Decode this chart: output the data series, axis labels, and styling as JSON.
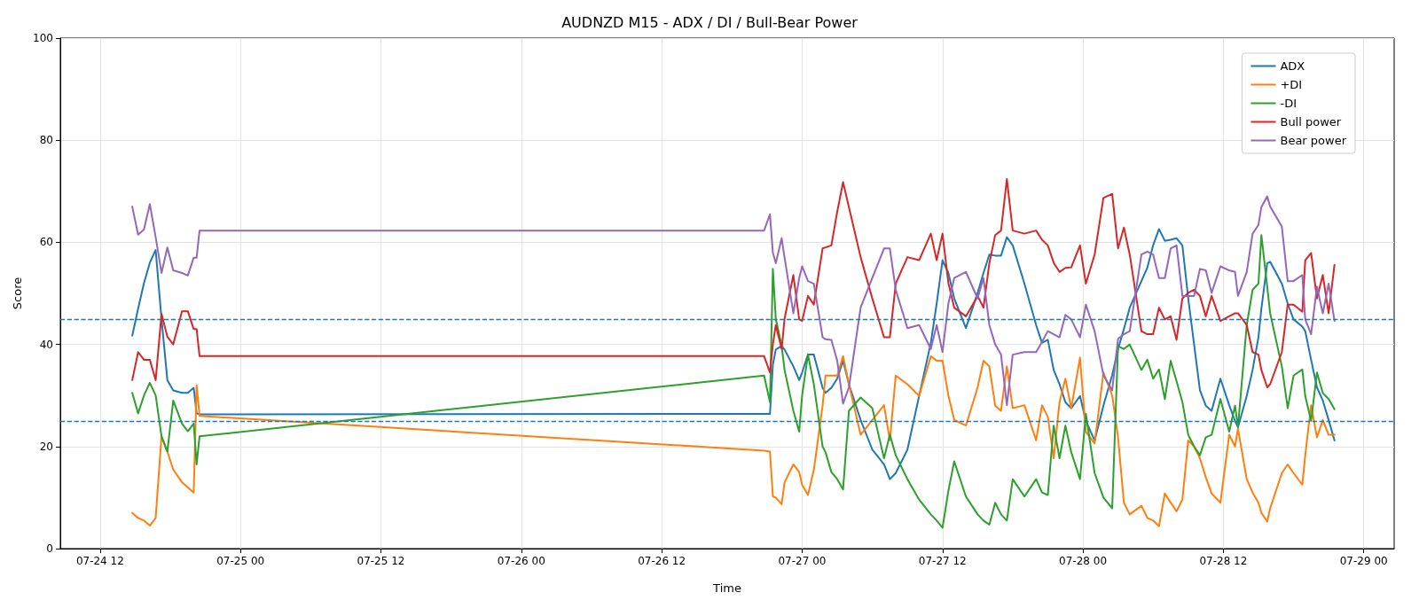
{
  "chart_data": {
    "type": "line",
    "title": "AUDNZD M15 - ADX / DI / Bull-Bear Power",
    "xlabel": "Time",
    "ylabel": "Score",
    "x": [
      "--07-24T14:45",
      "--07-24T15:15",
      "--07-24T15:45",
      "--07-24T16:15",
      "--07-24T16:45",
      "--07-24T17:15",
      "--07-24T17:45",
      "--07-24T18:15",
      "--07-24T19:00",
      "--07-24T19:30",
      "--07-24T20:00",
      "--07-24T20:15",
      "--07-24T20:30",
      "--07-26T20:45",
      "--07-26T21:15",
      "--07-26T21:30",
      "--07-26T21:45",
      "--07-26T22:15",
      "--07-26T22:30",
      "--07-26T23:15",
      "--07-26T23:45",
      "--07-27T00:00",
      "--07-27T00:30",
      "--07-27T01:00",
      "--07-27T01:45",
      "--07-27T02:00",
      "--07-27T02:30",
      "--07-27T03:00",
      "--07-27T03:30",
      "--07-27T04:00",
      "--07-27T05:00",
      "--07-27T06:00",
      "--07-27T07:00",
      "--07-27T07:30",
      "--07-27T08:00",
      "--07-27T09:00",
      "--07-27T10:00",
      "--07-27T11:00",
      "--07-27T11:30",
      "--07-27T12:00",
      "--07-27T12:30",
      "--07-27T13:00",
      "--07-27T14:00",
      "--07-27T15:00",
      "--07-27T15:30",
      "--07-27T16:00",
      "--07-27T16:30",
      "--07-27T17:00",
      "--07-27T17:30",
      "--07-27T18:00",
      "--07-27T19:00",
      "--07-27T20:00",
      "--07-27T20:30",
      "--07-27T21:00",
      "--07-27T21:30",
      "--07-27T22:00",
      "--07-27T22:30",
      "--07-27T23:00",
      "--07-27T23:45",
      "--07-28T00:15",
      "--07-28T01:00",
      "--07-28T01:45",
      "--07-28T02:30",
      "--07-28T03:00",
      "--07-28T03:30",
      "--07-28T04:00",
      "--07-28T05:00",
      "--07-28T05:30",
      "--07-28T06:00",
      "--07-28T06:30",
      "--07-28T07:00",
      "--07-28T07:30",
      "--07-28T08:00",
      "--07-28T08:30",
      "--07-28T09:00",
      "--07-28T09:30",
      "--07-28T10:00",
      "--07-28T10:30",
      "--07-28T11:00",
      "--07-28T11:45",
      "--07-28T12:30",
      "--07-28T13:00",
      "--07-28T13:15",
      "--07-28T14:00",
      "--07-28T14:30",
      "--07-28T15:00",
      "--07-28T15:15",
      "--07-28T15:45",
      "--07-28T16:00",
      "--07-28T17:00",
      "--07-28T17:30",
      "--07-28T18:00",
      "--07-28T18:45",
      "--07-28T19:00",
      "--07-28T19:30",
      "--07-28T20:00",
      "--07-28T20:30",
      "--07-28T21:00",
      "--07-28T21:30"
    ],
    "series": [
      {
        "name": "ADX",
        "color": "#1f77b4",
        "values": [
          41.7,
          47,
          52,
          56,
          58.5,
          45,
          33,
          31,
          30.5,
          30.5,
          31.5,
          26.5,
          26.3,
          26.4,
          26.4,
          36,
          39,
          39.7,
          39,
          35.7,
          33,
          34.5,
          38,
          38,
          31.5,
          30.5,
          31.5,
          33.3,
          36.8,
          32.2,
          25.2,
          19.4,
          16.5,
          13.6,
          14.8,
          19.4,
          29.9,
          40.3,
          48,
          56.5,
          54,
          49,
          43.2,
          50.1,
          54,
          57.6,
          57.4,
          57.4,
          61,
          59.4,
          51.9,
          43.8,
          40.3,
          40.9,
          35,
          32.2,
          28.7,
          27.5,
          29.9,
          25,
          21.2,
          28,
          34,
          39.1,
          43,
          47.2,
          52.4,
          55,
          59.4,
          62.6,
          60.3,
          60.5,
          60.8,
          59.4,
          49,
          40,
          31,
          28,
          27,
          33.3,
          28.1,
          25,
          23.8,
          29.9,
          35,
          41.4,
          47,
          55.9,
          56.2,
          51.9,
          48,
          44.9,
          43.5,
          42.6,
          37,
          31.6,
          29,
          25.2,
          21.2
        ]
      },
      {
        "name": "+DI",
        "color": "#ff7f0e",
        "values": [
          7,
          6,
          5.5,
          4.5,
          6,
          22,
          19,
          15.5,
          13,
          12,
          11,
          32,
          26,
          19.2,
          19,
          10.2,
          10,
          8.7,
          13,
          16.5,
          15,
          12.5,
          10.5,
          15.4,
          28,
          33.9,
          33.9,
          33.9,
          37.7,
          32.2,
          22.3,
          25.2,
          28.1,
          21.2,
          33.9,
          32.2,
          29.9,
          37.7,
          36.8,
          36.8,
          30,
          25.2,
          24.1,
          31.6,
          36.8,
          35.7,
          28,
          27,
          35.7,
          27.5,
          28.1,
          21.2,
          28.1,
          25.8,
          17.7,
          28.7,
          33.3,
          27.5,
          37.4,
          22.9,
          20.6,
          34.5,
          30,
          21.8,
          9,
          6.7,
          8.4,
          6,
          5.5,
          4.4,
          10.8,
          9,
          7.3,
          9.6,
          21.2,
          20,
          17.7,
          14,
          10.8,
          9,
          22.3,
          20,
          23.5,
          13.6,
          11,
          9,
          7,
          5.3,
          7.9,
          14.8,
          16.5,
          14.8,
          12.5,
          18.3,
          28.1,
          21.8,
          25.2,
          22.3,
          22.3
        ]
      },
      {
        "name": "-DI",
        "color": "#2ca02c",
        "values": [
          30.5,
          26.5,
          30,
          32.5,
          30,
          22,
          19,
          29,
          24.5,
          23,
          24.5,
          16.5,
          22,
          33.9,
          28.7,
          54.8,
          45,
          39.7,
          35,
          27,
          22.9,
          30,
          38,
          32.2,
          20,
          18.9,
          15,
          13.6,
          11.6,
          27,
          29.6,
          27.5,
          17.7,
          22.3,
          18.3,
          13.6,
          9.6,
          6.7,
          5.5,
          4.1,
          11.3,
          17.1,
          10.2,
          6.7,
          5.5,
          4.7,
          9,
          6.7,
          5.5,
          13.6,
          10.2,
          13.6,
          11,
          10.5,
          24.1,
          17.7,
          24.1,
          18.9,
          13.6,
          26.4,
          14.8,
          10,
          7.9,
          39.7,
          39.1,
          40,
          35,
          37,
          33.3,
          35.1,
          29.3,
          36.8,
          32.8,
          28.7,
          22.3,
          20,
          18.3,
          21.8,
          22.3,
          29.3,
          22.9,
          28,
          23.8,
          43.8,
          50.7,
          51.9,
          61.4,
          51.3,
          46.1,
          35.7,
          27.5,
          33.9,
          35.1,
          29.9,
          25,
          34.5,
          30.5,
          29.3,
          27.3
        ]
      },
      {
        "name": "Bull power",
        "color": "#d62728",
        "values": [
          33,
          38.5,
          37,
          37,
          33,
          46,
          41.5,
          40,
          46.5,
          46.5,
          43,
          43,
          37.7,
          37.7,
          34.5,
          40,
          43.8,
          39.1,
          45,
          53.6,
          44.9,
          44.6,
          49.5,
          47.8,
          58.8,
          59,
          59.4,
          66,
          71.8,
          66.9,
          57.1,
          49,
          41.4,
          41.4,
          51.9,
          57.1,
          56.5,
          61.7,
          56.5,
          61.7,
          52,
          47.2,
          45.5,
          49.5,
          47.2,
          55.9,
          61.4,
          62.3,
          72.4,
          62.3,
          61.7,
          62.3,
          60.5,
          59.4,
          56,
          54.2,
          55,
          55.1,
          59.4,
          51.9,
          57.6,
          68.7,
          69.5,
          58.8,
          62.9,
          57.6,
          42.6,
          42,
          42,
          47.2,
          44.9,
          45.5,
          40.9,
          49,
          50.1,
          50.7,
          49.5,
          45.5,
          49.5,
          44.6,
          45.5,
          46.1,
          46.1,
          43.8,
          38.5,
          38,
          35,
          31.6,
          32.2,
          38.5,
          47.8,
          47.8,
          46.4,
          56.5,
          57.9,
          49,
          53.6,
          46.1,
          55.6
        ]
      },
      {
        "name": "Bear power",
        "color": "#9467bd",
        "values": [
          67,
          61.5,
          62.5,
          67.5,
          61,
          54,
          59,
          54.5,
          54,
          53.5,
          57,
          57,
          62.3,
          62.3,
          65.5,
          58,
          55.9,
          60.8,
          57,
          46.1,
          53,
          55.3,
          52.4,
          51.9,
          41.4,
          41,
          40.9,
          36.8,
          28.4,
          31.6,
          47.2,
          53,
          58.8,
          58.8,
          50.7,
          43.2,
          43.8,
          39.1,
          43.8,
          38.5,
          48,
          53,
          54.2,
          49,
          53,
          43.8,
          40,
          38,
          28.1,
          38,
          38.5,
          38.5,
          40.5,
          42.6,
          42,
          41.4,
          45.8,
          44.9,
          41.4,
          47.8,
          42.6,
          34,
          31,
          41.1,
          42,
          42.6,
          57.6,
          58.2,
          57.6,
          53,
          53,
          58.8,
          59.4,
          49.5,
          49.5,
          49.5,
          54.8,
          54.5,
          50.1,
          55.3,
          54.5,
          54.2,
          49.5,
          54.2,
          61.7,
          63.4,
          66.9,
          69,
          67,
          63.1,
          52.4,
          52.4,
          53.6,
          44.9,
          42,
          51.3,
          46.1,
          51.9,
          44.6
        ]
      }
    ],
    "xlim": [
      "--07-24T08:36",
      "--07-29T02:36"
    ],
    "xticks": [
      {
        "value": "--07-24T12:00",
        "label": "07-24 12"
      },
      {
        "value": "--07-25T00:00",
        "label": "07-25 00"
      },
      {
        "value": "--07-25T12:00",
        "label": "07-25 12"
      },
      {
        "value": "--07-26T00:00",
        "label": "07-26 00"
      },
      {
        "value": "--07-26T12:00",
        "label": "07-26 12"
      },
      {
        "value": "--07-27T00:00",
        "label": "07-27 00"
      },
      {
        "value": "--07-27T12:00",
        "label": "07-27 12"
      },
      {
        "value": "--07-28T00:00",
        "label": "07-28 00"
      },
      {
        "value": "--07-28T12:00",
        "label": "07-28 12"
      },
      {
        "value": "--07-29T00:00",
        "label": "07-29 00"
      }
    ],
    "ylim": [
      0,
      100
    ],
    "yticks": [
      0,
      20,
      40,
      60,
      80,
      100
    ],
    "ref_lines": [
      {
        "axis": "y",
        "value": 45,
        "color": "#1f77b4",
        "line_style": "dashed"
      },
      {
        "axis": "y",
        "value": 25,
        "color": "#1f77b4",
        "line_style": "dashed"
      }
    ],
    "grid": true,
    "legend": "top right",
    "marker": "none",
    "line_style": "solid"
  }
}
